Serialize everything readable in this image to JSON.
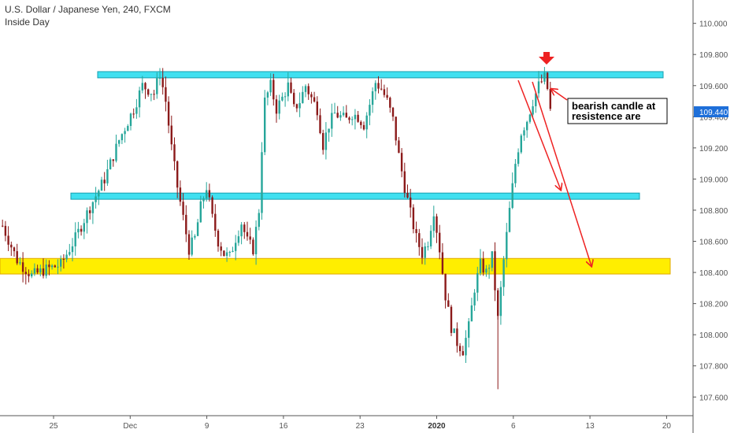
{
  "header": {
    "title": "U.S. Dollar / Japanese Yen, 240, FXCM",
    "subtitle": "Inside Day"
  },
  "colors": {
    "up": "#26a69a",
    "down": "#8b1a1a",
    "zone_cyan": "#40e0f0",
    "zone_yellow": "#ffee00",
    "arrow_red": "#ee2222",
    "price_label_bg": "#1e6fd9",
    "axis": "#555555"
  },
  "chart_data": {
    "type": "candlestick",
    "title": "U.S. Dollar / Japanese Yen, 240, FXCM",
    "subtitle": "Inside Day",
    "ylim": [
      107.48,
      110.15
    ],
    "y_ticks": [
      "107.600",
      "107.800",
      "108.000",
      "108.200",
      "108.400",
      "108.600",
      "108.800",
      "109.000",
      "109.200",
      "109.400",
      "109.600",
      "109.800",
      "110.000"
    ],
    "x_ticks": [
      {
        "label": "25",
        "bold": false
      },
      {
        "label": "Dec",
        "bold": false
      },
      {
        "label": "9",
        "bold": false
      },
      {
        "label": "16",
        "bold": false
      },
      {
        "label": "23",
        "bold": false
      },
      {
        "label": "2020",
        "bold": true
      },
      {
        "label": "6",
        "bold": false
      },
      {
        "label": "13",
        "bold": false
      },
      {
        "label": "20",
        "bold": false
      }
    ],
    "last_price": "109.440",
    "zones": [
      {
        "name": "upper-resistance",
        "low": 109.65,
        "high": 109.69,
        "color": "cyan"
      },
      {
        "name": "middle-level",
        "low": 108.87,
        "high": 108.91,
        "color": "cyan"
      },
      {
        "name": "support",
        "low": 108.39,
        "high": 108.49,
        "color": "yellow"
      }
    ],
    "annotation": {
      "line1": "bearish candle at",
      "line2": "resistence are"
    },
    "path_points": [
      [
        0,
        108.7
      ],
      [
        5,
        108.48
      ],
      [
        10,
        108.38
      ],
      [
        15,
        108.42
      ],
      [
        20,
        108.45
      ],
      [
        25,
        108.62
      ],
      [
        30,
        108.82
      ],
      [
        35,
        109.0
      ],
      [
        40,
        109.25
      ],
      [
        45,
        109.45
      ],
      [
        48,
        109.6
      ],
      [
        52,
        109.55
      ],
      [
        54,
        109.68
      ],
      [
        56,
        109.5
      ],
      [
        58,
        109.2
      ],
      [
        60,
        108.95
      ],
      [
        62,
        108.75
      ],
      [
        64,
        108.55
      ],
      [
        66,
        108.62
      ],
      [
        68,
        108.82
      ],
      [
        70,
        108.95
      ],
      [
        72,
        108.75
      ],
      [
        74,
        108.6
      ],
      [
        76,
        108.52
      ],
      [
        78,
        108.5
      ],
      [
        80,
        108.62
      ],
      [
        82,
        108.72
      ],
      [
        84,
        108.6
      ],
      [
        86,
        108.55
      ],
      [
        88,
        108.8
      ],
      [
        89,
        109.2
      ],
      [
        90,
        109.5
      ],
      [
        92,
        109.6
      ],
      [
        94,
        109.45
      ],
      [
        96,
        109.52
      ],
      [
        98,
        109.6
      ],
      [
        100,
        109.45
      ],
      [
        102,
        109.5
      ],
      [
        104,
        109.6
      ],
      [
        106,
        109.52
      ],
      [
        108,
        109.45
      ],
      [
        110,
        109.22
      ],
      [
        112,
        109.35
      ],
      [
        114,
        109.42
      ],
      [
        116,
        109.4
      ],
      [
        118,
        109.38
      ],
      [
        120,
        109.42
      ],
      [
        122,
        109.4
      ],
      [
        124,
        109.35
      ],
      [
        126,
        109.48
      ],
      [
        128,
        109.62
      ],
      [
        130,
        109.58
      ],
      [
        132,
        109.5
      ],
      [
        134,
        109.38
      ],
      [
        136,
        109.15
      ],
      [
        138,
        108.95
      ],
      [
        140,
        108.78
      ],
      [
        142,
        108.62
      ],
      [
        144,
        108.52
      ],
      [
        146,
        108.6
      ],
      [
        148,
        108.8
      ],
      [
        150,
        108.55
      ],
      [
        152,
        108.25
      ],
      [
        154,
        108.05
      ],
      [
        156,
        107.95
      ],
      [
        158,
        107.9
      ],
      [
        160,
        108.05
      ],
      [
        162,
        108.3
      ],
      [
        164,
        108.45
      ],
      [
        166,
        108.4
      ],
      [
        168,
        108.5
      ],
      [
        170,
        108.1
      ],
      [
        172,
        108.48
      ],
      [
        174,
        108.8
      ],
      [
        176,
        109.1
      ],
      [
        178,
        109.3
      ],
      [
        180,
        109.38
      ],
      [
        182,
        109.5
      ],
      [
        184,
        109.6
      ],
      [
        186,
        109.65
      ],
      [
        187,
        109.58
      ],
      [
        188,
        109.44
      ]
    ]
  }
}
